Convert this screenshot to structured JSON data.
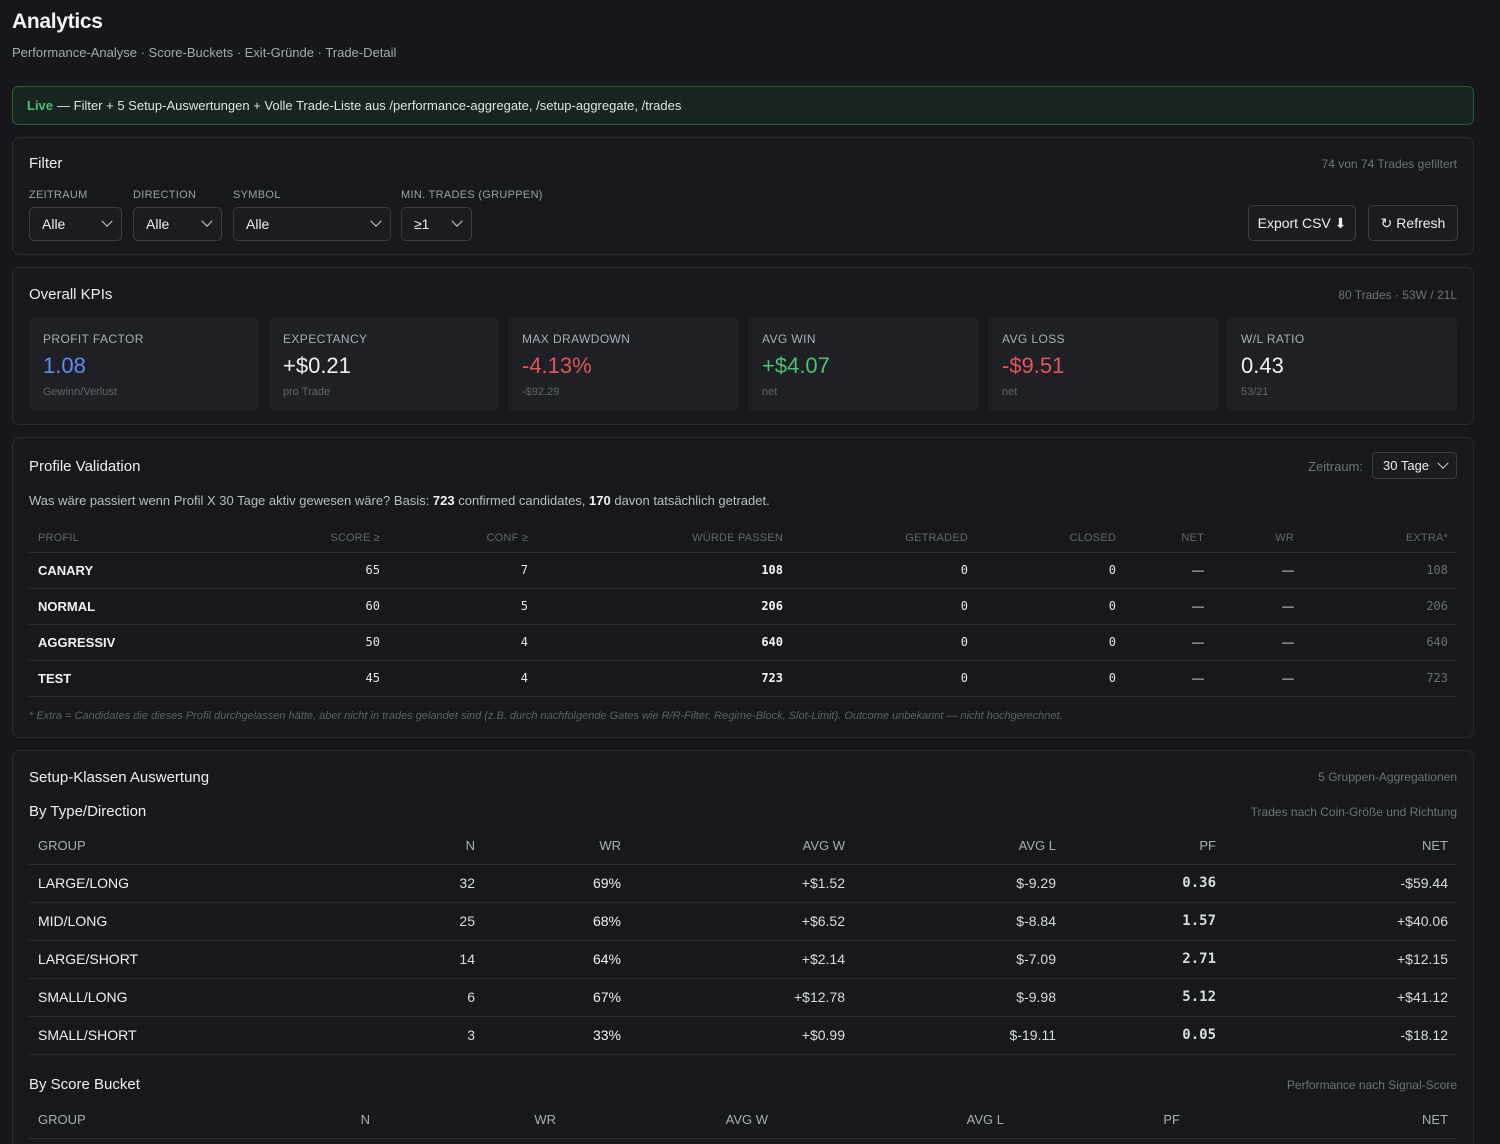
{
  "page": {
    "title": "Analytics",
    "subtitle": "Performance-Analyse · Score-Buckets · Exit-Gründe · Trade-Detail"
  },
  "banner": {
    "tag": "Live",
    "text": "— Filter + 5 Setup-Auswertungen + Volle Trade-Liste aus /performance-aggregate, /setup-aggregate, /trades"
  },
  "filter": {
    "title": "Filter",
    "meta": "74 von 74 Trades gefiltert",
    "fields": [
      {
        "label": "ZEITRAUM",
        "value": "Alle"
      },
      {
        "label": "DIRECTION",
        "value": "Alle"
      },
      {
        "label": "SYMBOL",
        "value": "Alle"
      },
      {
        "label": "MIN. TRADES (GRUPPEN)",
        "value": "≥1"
      }
    ],
    "export_label": "Export CSV ⬇",
    "refresh_label": "↻ Refresh"
  },
  "kpis": {
    "title": "Overall KPIs",
    "meta": "80 Trades · 53W / 21L",
    "tiles": [
      {
        "label": "PROFIT FACTOR",
        "value": "1.08",
        "sub": "Gewinn/Verlust",
        "tone": "blue"
      },
      {
        "label": "EXPECTANCY",
        "value": "+$0.21",
        "sub": "pro Trade",
        "tone": "neutral"
      },
      {
        "label": "MAX DRAWDOWN",
        "value": "-4.13%",
        "sub": "-$92.29",
        "tone": "neg"
      },
      {
        "label": "AVG WIN",
        "value": "+$4.07",
        "sub": "net",
        "tone": "pos"
      },
      {
        "label": "AVG LOSS",
        "value": "-$9.51",
        "sub": "net",
        "tone": "neg"
      },
      {
        "label": "W/L RATIO",
        "value": "0.43",
        "sub": "53/21",
        "tone": "neutral"
      }
    ]
  },
  "profile": {
    "title": "Profile Validation",
    "zeitraum_label": "Zeitraum:",
    "zeitraum_value": "30 Tage",
    "desc_pre": "Was wäre passiert wenn Profil X 30 Tage aktiv gewesen wäre? Basis: ",
    "desc_n1": "723",
    "desc_mid": " confirmed candidates, ",
    "desc_n2": "170",
    "desc_post": " davon tatsächlich getradet.",
    "columns": [
      "PROFIL",
      "SCORE ≥",
      "CONF ≥",
      "WÜRDE PASSEN",
      "GETRADED",
      "CLOSED",
      "NET",
      "WR",
      "EXTRA*"
    ],
    "rows": [
      {
        "profil": "CANARY",
        "score": "65",
        "conf": "7",
        "pass": "108",
        "traded": "0",
        "closed": "0",
        "net": "—",
        "wr": "—",
        "extra": "108"
      },
      {
        "profil": "NORMAL",
        "score": "60",
        "conf": "5",
        "pass": "206",
        "traded": "0",
        "closed": "0",
        "net": "—",
        "wr": "—",
        "extra": "206"
      },
      {
        "profil": "AGGRESSIV",
        "score": "50",
        "conf": "4",
        "pass": "640",
        "traded": "0",
        "closed": "0",
        "net": "—",
        "wr": "—",
        "extra": "640"
      },
      {
        "profil": "TEST",
        "score": "45",
        "conf": "4",
        "pass": "723",
        "traded": "0",
        "closed": "0",
        "net": "—",
        "wr": "—",
        "extra": "723"
      }
    ],
    "footnote": "* Extra = Candidates die dieses Profil durchgelassen hätte, aber nicht in trades gelandet sind (z.B. durch nachfolgende Gates wie R/R-Filter, Regime-Block, Slot-Limit). Outcome unbekannt — nicht hochgerechnet."
  },
  "setup": {
    "title": "Setup-Klassen Auswertung",
    "meta": "5 Gruppen-Aggregationen",
    "by_type": {
      "title": "By Type/Direction",
      "meta": "Trades nach Coin-Größe und Richtung",
      "columns": [
        "GROUP",
        "N",
        "WR",
        "AVG W",
        "AVG L",
        "PF",
        "NET"
      ],
      "rows": [
        {
          "group": "LARGE/LONG",
          "n": "32",
          "wr": "69%",
          "avgw": "+$1.52",
          "avgl": "$-9.29",
          "pf": "0.36",
          "net": "-$59.44",
          "net_tone": "neg"
        },
        {
          "group": "MID/LONG",
          "n": "25",
          "wr": "68%",
          "avgw": "+$6.52",
          "avgl": "$-8.84",
          "pf": "1.57",
          "net": "+$40.06",
          "net_tone": "pos"
        },
        {
          "group": "LARGE/SHORT",
          "n": "14",
          "wr": "64%",
          "avgw": "+$2.14",
          "avgl": "$-7.09",
          "pf": "2.71",
          "net": "+$12.15",
          "net_tone": "pos"
        },
        {
          "group": "SMALL/LONG",
          "n": "6",
          "wr": "67%",
          "avgw": "+$12.78",
          "avgl": "$-9.98",
          "pf": "5.12",
          "net": "+$41.12",
          "net_tone": "pos"
        },
        {
          "group": "SMALL/SHORT",
          "n": "3",
          "wr": "33%",
          "avgw": "+$0.99",
          "avgl": "$-19.11",
          "pf": "0.05",
          "net": "-$18.12",
          "net_tone": "neg"
        }
      ]
    },
    "by_score": {
      "title": "By Score Bucket",
      "meta": "Performance nach Signal-Score",
      "columns": [
        "GROUP",
        "N",
        "WR",
        "AVG W",
        "AVG L",
        "PF",
        "NET"
      ]
    }
  }
}
